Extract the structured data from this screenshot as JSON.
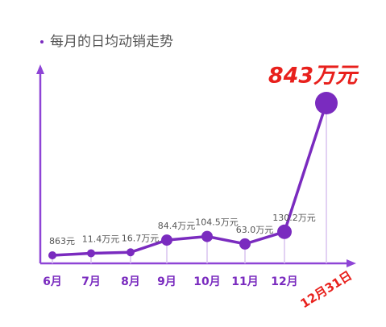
{
  "chart_data": {
    "type": "line",
    "title": "每月的日均动销走势",
    "categories": [
      "6月",
      "7月",
      "8月",
      "9月",
      "10月",
      "11月",
      "12月",
      "12月31日"
    ],
    "values": [
      0.0863,
      11.4,
      16.7,
      84.4,
      104.5,
      63.0,
      130.2,
      843
    ],
    "value_labels": [
      "863元",
      "11.4万元",
      "16.7万元",
      "84.4万元",
      "104.5万元",
      "63.0万元",
      "130.2万元",
      "843万元"
    ],
    "color": "#7a2bbf"
  }
}
